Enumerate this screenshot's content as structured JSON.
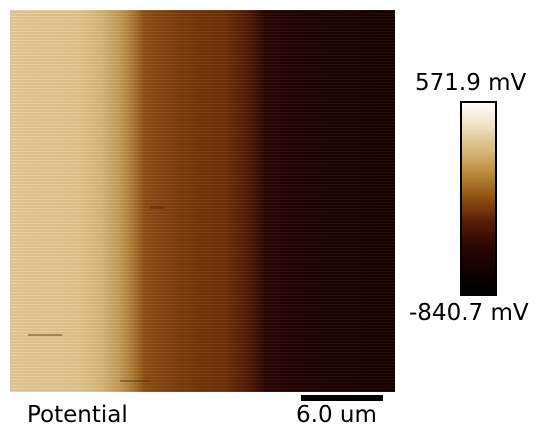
{
  "image": {
    "label": "Potential",
    "scale_bar_label": "6.0 um"
  },
  "colorbar": {
    "max_label": "571.9 mV",
    "min_label": "-840.7 mV",
    "colors": [
      "#ffffff",
      "#d8b77a",
      "#8e4f10",
      "#2e0703",
      "#000000"
    ]
  }
}
